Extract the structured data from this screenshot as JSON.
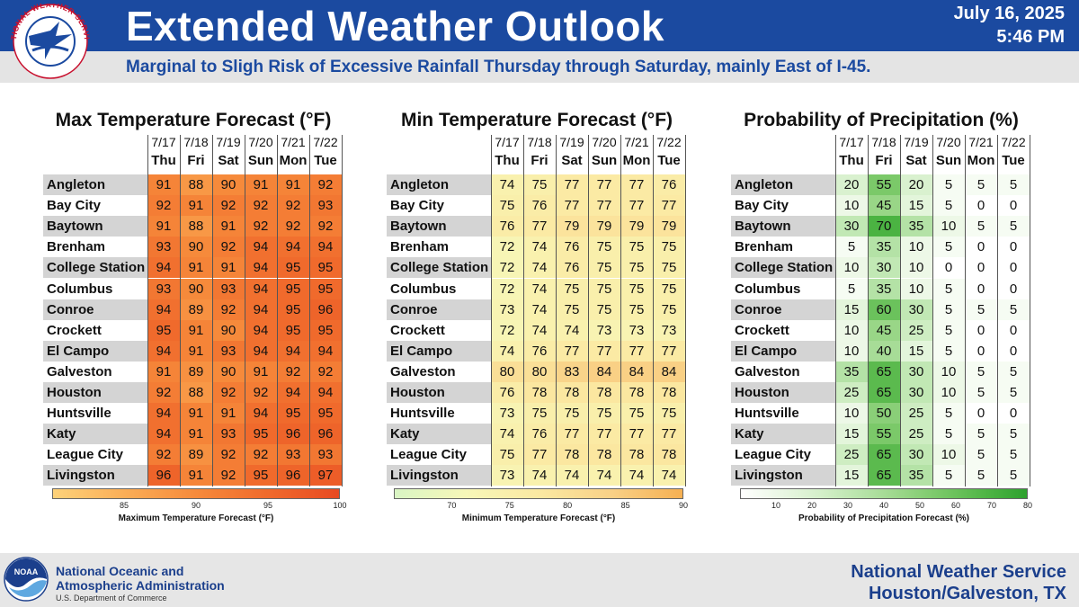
{
  "header": {
    "title": "Extended Weather Outlook",
    "date": "July 16, 2025",
    "time": "5:46 PM",
    "subtitle": "Marginal to Sligh Risk of Excessive Rainfall Thursday through Saturday, mainly East of I-45.",
    "logo_text": "NATIONAL WEATHER SERVICE"
  },
  "footer": {
    "agency_line1": "National Oceanic and",
    "agency_line2": "Atmospheric Administration",
    "department": "U.S. Department of Commerce",
    "logo_text": "NOAA",
    "office_line1": "National Weather Service",
    "office_line2": "Houston/Galveston, TX"
  },
  "colors": {
    "header_blue": "#1b4aa0",
    "footer_text": "#1b3f8c"
  },
  "chart_data": [
    {
      "type": "table",
      "title": "Max Temperature Forecast (°F)",
      "dates": [
        "7/17",
        "7/18",
        "7/19",
        "7/20",
        "7/21",
        "7/22"
      ],
      "days": [
        "Thu",
        "Fri",
        "Sat",
        "Sun",
        "Mon",
        "Tue"
      ],
      "rows": [
        {
          "city": "Angleton",
          "values": [
            91,
            88,
            90,
            91,
            91,
            92
          ]
        },
        {
          "city": "Bay City",
          "values": [
            92,
            91,
            92,
            92,
            92,
            93
          ]
        },
        {
          "city": "Baytown",
          "values": [
            91,
            88,
            91,
            92,
            92,
            92
          ]
        },
        {
          "city": "Brenham",
          "values": [
            93,
            90,
            92,
            94,
            94,
            94
          ]
        },
        {
          "city": "College Station",
          "values": [
            94,
            91,
            91,
            94,
            95,
            95
          ]
        },
        {
          "city": "Columbus",
          "values": [
            93,
            90,
            93,
            94,
            95,
            95
          ]
        },
        {
          "city": "Conroe",
          "values": [
            94,
            89,
            92,
            94,
            95,
            96
          ]
        },
        {
          "city": "Crockett",
          "values": [
            95,
            91,
            90,
            94,
            95,
            95
          ]
        },
        {
          "city": "El Campo",
          "values": [
            94,
            91,
            93,
            94,
            94,
            94
          ]
        },
        {
          "city": "Galveston",
          "values": [
            91,
            89,
            90,
            91,
            92,
            92
          ]
        },
        {
          "city": "Houston",
          "values": [
            92,
            88,
            92,
            92,
            94,
            94
          ]
        },
        {
          "city": "Huntsville",
          "values": [
            94,
            91,
            91,
            94,
            95,
            95
          ]
        },
        {
          "city": "Katy",
          "values": [
            94,
            91,
            93,
            95,
            96,
            96
          ]
        },
        {
          "city": "League City",
          "values": [
            92,
            89,
            92,
            92,
            93,
            93
          ]
        },
        {
          "city": "Livingston",
          "values": [
            96,
            91,
            92,
            95,
            96,
            97
          ]
        }
      ],
      "legend": {
        "label": "Maximum Temperature Forecast (°F)",
        "ticks": [
          85,
          90,
          95,
          100
        ],
        "range": [
          80,
          100
        ],
        "colors": [
          "#fdd27a",
          "#fbae57",
          "#f68a3b",
          "#f06a2c",
          "#e84a22"
        ]
      }
    },
    {
      "type": "table",
      "title": "Min Temperature Forecast (°F)",
      "dates": [
        "7/17",
        "7/18",
        "7/19",
        "7/20",
        "7/21",
        "7/22"
      ],
      "days": [
        "Thu",
        "Fri",
        "Sat",
        "Sun",
        "Mon",
        "Tue"
      ],
      "rows": [
        {
          "city": "Angleton",
          "values": [
            74,
            75,
            77,
            77,
            77,
            76
          ]
        },
        {
          "city": "Bay City",
          "values": [
            75,
            76,
            77,
            77,
            77,
            77
          ]
        },
        {
          "city": "Baytown",
          "values": [
            76,
            77,
            79,
            79,
            79,
            79
          ]
        },
        {
          "city": "Brenham",
          "values": [
            72,
            74,
            76,
            75,
            75,
            75
          ]
        },
        {
          "city": "College Station",
          "values": [
            72,
            74,
            76,
            75,
            75,
            75
          ]
        },
        {
          "city": "Columbus",
          "values": [
            72,
            74,
            75,
            75,
            75,
            75
          ]
        },
        {
          "city": "Conroe",
          "values": [
            73,
            74,
            75,
            75,
            75,
            75
          ]
        },
        {
          "city": "Crockett",
          "values": [
            72,
            74,
            74,
            73,
            73,
            73
          ]
        },
        {
          "city": "El Campo",
          "values": [
            74,
            76,
            77,
            77,
            77,
            77
          ]
        },
        {
          "city": "Galveston",
          "values": [
            80,
            80,
            83,
            84,
            84,
            84
          ]
        },
        {
          "city": "Houston",
          "values": [
            76,
            78,
            78,
            78,
            78,
            78
          ]
        },
        {
          "city": "Huntsville",
          "values": [
            73,
            75,
            75,
            75,
            75,
            75
          ]
        },
        {
          "city": "Katy",
          "values": [
            74,
            76,
            77,
            77,
            77,
            77
          ]
        },
        {
          "city": "League City",
          "values": [
            75,
            77,
            78,
            78,
            78,
            78
          ]
        },
        {
          "city": "Livingston",
          "values": [
            73,
            74,
            74,
            74,
            74,
            74
          ]
        }
      ],
      "legend": {
        "label": "Minimum Temperature Forecast (°F)",
        "ticks": [
          70,
          75,
          80,
          85,
          90
        ],
        "range": [
          65,
          90
        ],
        "colors": [
          "#d9f5c4",
          "#f7f7b8",
          "#fbe9a2",
          "#f9d187",
          "#f6b052"
        ]
      }
    },
    {
      "type": "table",
      "title": "Probability of Precipitation (%)",
      "dates": [
        "7/17",
        "7/18",
        "7/19",
        "7/20",
        "7/21",
        "7/22"
      ],
      "days": [
        "Thu",
        "Fri",
        "Sat",
        "Sun",
        "Mon",
        "Tue"
      ],
      "rows": [
        {
          "city": "Angleton",
          "values": [
            20,
            55,
            20,
            5,
            5,
            5
          ]
        },
        {
          "city": "Bay City",
          "values": [
            10,
            45,
            15,
            5,
            0,
            0
          ]
        },
        {
          "city": "Baytown",
          "values": [
            30,
            70,
            35,
            10,
            5,
            5
          ]
        },
        {
          "city": "Brenham",
          "values": [
            5,
            35,
            10,
            5,
            0,
            0
          ]
        },
        {
          "city": "College Station",
          "values": [
            10,
            30,
            10,
            0,
            0,
            0
          ]
        },
        {
          "city": "Columbus",
          "values": [
            5,
            35,
            10,
            5,
            0,
            0
          ]
        },
        {
          "city": "Conroe",
          "values": [
            15,
            60,
            30,
            5,
            5,
            5
          ]
        },
        {
          "city": "Crockett",
          "values": [
            10,
            45,
            25,
            5,
            0,
            0
          ]
        },
        {
          "city": "El Campo",
          "values": [
            10,
            40,
            15,
            5,
            0,
            0
          ]
        },
        {
          "city": "Galveston",
          "values": [
            35,
            65,
            30,
            10,
            5,
            5
          ]
        },
        {
          "city": "Houston",
          "values": [
            25,
            65,
            30,
            10,
            5,
            5
          ]
        },
        {
          "city": "Huntsville",
          "values": [
            10,
            50,
            25,
            5,
            0,
            0
          ]
        },
        {
          "city": "Katy",
          "values": [
            15,
            55,
            25,
            5,
            5,
            5
          ]
        },
        {
          "city": "League City",
          "values": [
            25,
            65,
            30,
            10,
            5,
            5
          ]
        },
        {
          "city": "Livingston",
          "values": [
            15,
            65,
            35,
            5,
            5,
            5
          ]
        }
      ],
      "legend": {
        "label": "Probability of Precipitation Forecast (%)",
        "ticks": [
          10,
          20,
          30,
          40,
          50,
          60,
          70,
          80
        ],
        "range": [
          0,
          80
        ],
        "colors": [
          "#ffffff",
          "#eaf7e4",
          "#d3efc8",
          "#b6e3a8",
          "#97d585",
          "#74c663",
          "#4fb545",
          "#2ea12e"
        ]
      }
    }
  ]
}
